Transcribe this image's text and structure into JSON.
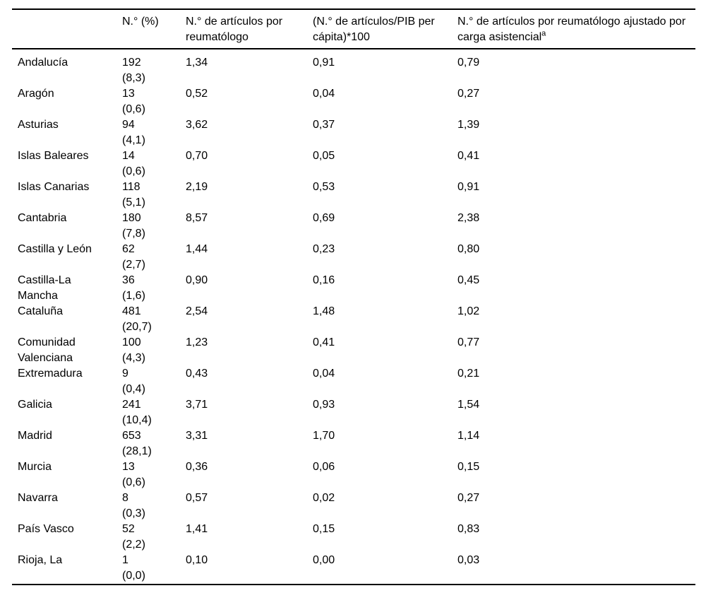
{
  "table": {
    "columns": [
      {
        "label": ""
      },
      {
        "label": "N.° (%)"
      },
      {
        "label": "N.° de artículos por reumatólogo"
      },
      {
        "label": "(N.° de artículos/PIB per cápita)*100"
      },
      {
        "label": "N.° de artículos por reumatólogo ajustado por carga asistencial",
        "sup": "a"
      }
    ],
    "rows": [
      {
        "region": "Andalucía",
        "n": "192",
        "pct": "(8,3)",
        "per_reumatologo": "1,34",
        "pib": "0,91",
        "ajustado": "0,79"
      },
      {
        "region": "Aragón",
        "n": "13",
        "pct": "(0,6)",
        "per_reumatologo": "0,52",
        "pib": "0,04",
        "ajustado": "0,27"
      },
      {
        "region": "Asturias",
        "n": "94",
        "pct": "(4,1)",
        "per_reumatologo": "3,62",
        "pib": "0,37",
        "ajustado": "1,39"
      },
      {
        "region": "Islas Baleares",
        "n": "14",
        "pct": "(0,6)",
        "per_reumatologo": "0,70",
        "pib": "0,05",
        "ajustado": "0,41"
      },
      {
        "region": "Islas Canarias",
        "n": "118",
        "pct": "(5,1)",
        "per_reumatologo": "2,19",
        "pib": "0,53",
        "ajustado": "0,91"
      },
      {
        "region": "Cantabria",
        "n": "180",
        "pct": "(7,8)",
        "per_reumatologo": "8,57",
        "pib": "0,69",
        "ajustado": "2,38"
      },
      {
        "region": "Castilla y León",
        "n": "62",
        "pct": "(2,7)",
        "per_reumatologo": "1,44",
        "pib": "0,23",
        "ajustado": "0,80"
      },
      {
        "region": "Castilla-La Mancha",
        "n": "36",
        "pct": "(1,6)",
        "per_reumatologo": "0,90",
        "pib": "0,16",
        "ajustado": "0,45"
      },
      {
        "region": "Cataluña",
        "n": "481",
        "pct": "(20,7)",
        "per_reumatologo": "2,54",
        "pib": "1,48",
        "ajustado": "1,02"
      },
      {
        "region": "Comunidad Valenciana",
        "n": "100",
        "pct": "(4,3)",
        "per_reumatologo": "1,23",
        "pib": "0,41",
        "ajustado": "0,77"
      },
      {
        "region": "Extremadura",
        "n": "9",
        "pct": "(0,4)",
        "per_reumatologo": "0,43",
        "pib": "0,04",
        "ajustado": "0,21"
      },
      {
        "region": "Galicia",
        "n": "241",
        "pct": "(10,4)",
        "per_reumatologo": "3,71",
        "pib": "0,93",
        "ajustado": "1,54"
      },
      {
        "region": "Madrid",
        "n": "653",
        "pct": "(28,1)",
        "per_reumatologo": "3,31",
        "pib": "1,70",
        "ajustado": "1,14"
      },
      {
        "region": "Murcia",
        "n": "13",
        "pct": "(0,6)",
        "per_reumatologo": "0,36",
        "pib": "0,06",
        "ajustado": "0,15"
      },
      {
        "region": "Navarra",
        "n": "8",
        "pct": "(0,3)",
        "per_reumatologo": "0,57",
        "pib": "0,02",
        "ajustado": "0,27"
      },
      {
        "region": "País Vasco",
        "n": "52",
        "pct": "(2,2)",
        "per_reumatologo": "1,41",
        "pib": "0,15",
        "ajustado": "0,83"
      },
      {
        "region": "Rioja, La",
        "n": "1",
        "pct": "(0,0)",
        "per_reumatologo": "0,10",
        "pib": "0,00",
        "ajustado": "0,03"
      }
    ]
  }
}
